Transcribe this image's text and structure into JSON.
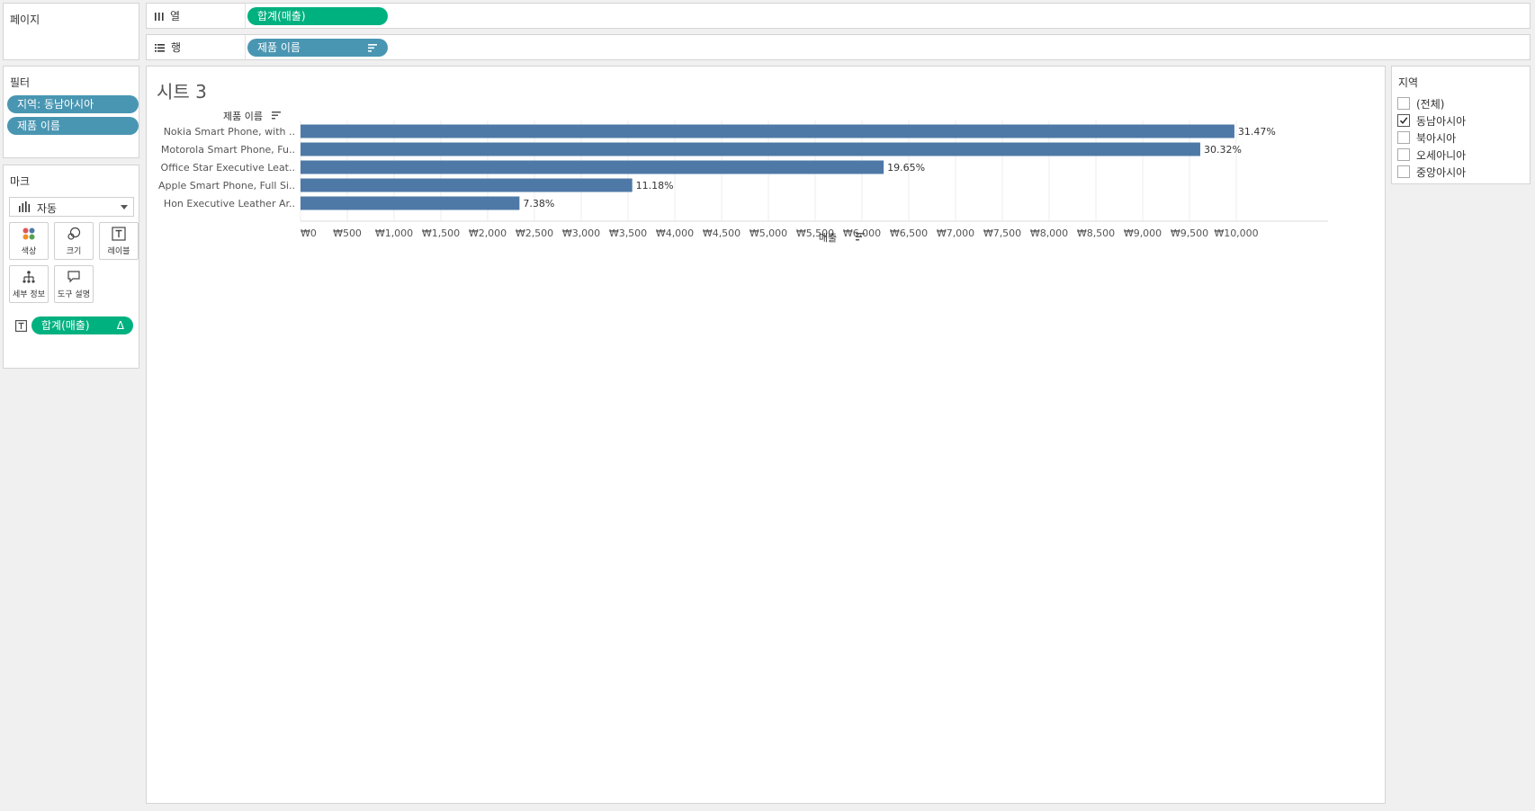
{
  "pages_panel": {
    "title": "페이지"
  },
  "columns_shelf": {
    "label": "열",
    "icon": "columns-icon",
    "pill": "합계(매출)"
  },
  "rows_shelf": {
    "label": "행",
    "icon": "rows-icon",
    "pill": "제품 이름"
  },
  "filters_panel": {
    "title": "필터",
    "items": [
      "지역: 동남아시아",
      "제품 이름"
    ]
  },
  "marks_panel": {
    "title": "마크",
    "mark_type": "자동",
    "buttons": {
      "color": "색상",
      "size": "크기",
      "label": "레이블",
      "detail": "세부 정보",
      "tooltip": "도구 설명"
    },
    "label_pill": "합계(매출)",
    "delta_symbol": "Δ"
  },
  "sheet": {
    "title": "시트 3",
    "row_header": "제품 이름",
    "x_axis_title": "매출"
  },
  "region_filter": {
    "title": "지역",
    "options": [
      {
        "label": "(전체)",
        "checked": false
      },
      {
        "label": "동남아시아",
        "checked": true
      },
      {
        "label": "북아시아",
        "checked": false
      },
      {
        "label": "오세아니아",
        "checked": false
      },
      {
        "label": "중앙아시아",
        "checked": false
      }
    ]
  },
  "colors": {
    "bar": "#4e79a7",
    "pill_blue": "#4996b2",
    "pill_green": "#00b180"
  },
  "chart_data": {
    "type": "bar",
    "orientation": "horizontal",
    "categories": [
      "Nokia Smart Phone, with ..",
      "Motorola Smart Phone, Fu..",
      "Office Star Executive Leat..",
      "Apple Smart Phone, Full Si..",
      "Hon Executive Leather Ar.."
    ],
    "values": [
      9980,
      9615,
      6232,
      3545,
      2340
    ],
    "data_labels": [
      "31.47%",
      "30.32%",
      "19.65%",
      "11.18%",
      "7.38%"
    ],
    "xlim": [
      0,
      10500
    ],
    "x_ticks": [
      0,
      500,
      1000,
      1500,
      2000,
      2500,
      3000,
      3500,
      4000,
      4500,
      5000,
      5500,
      6000,
      6500,
      7000,
      7500,
      8000,
      8500,
      9000,
      9500,
      10000
    ],
    "x_tick_labels": [
      "₩0",
      "₩500",
      "₩1,000",
      "₩1,500",
      "₩2,000",
      "₩2,500",
      "₩3,000",
      "₩3,500",
      "₩4,000",
      "₩4,500",
      "₩5,000",
      "₩5,500",
      "₩6,000",
      "₩6,500",
      "₩7,000",
      "₩7,500",
      "₩8,000",
      "₩8,500",
      "₩9,000",
      "₩9,500",
      "₩10,000"
    ],
    "xlabel": "매출",
    "ylabel": "제품 이름",
    "grid": true
  }
}
